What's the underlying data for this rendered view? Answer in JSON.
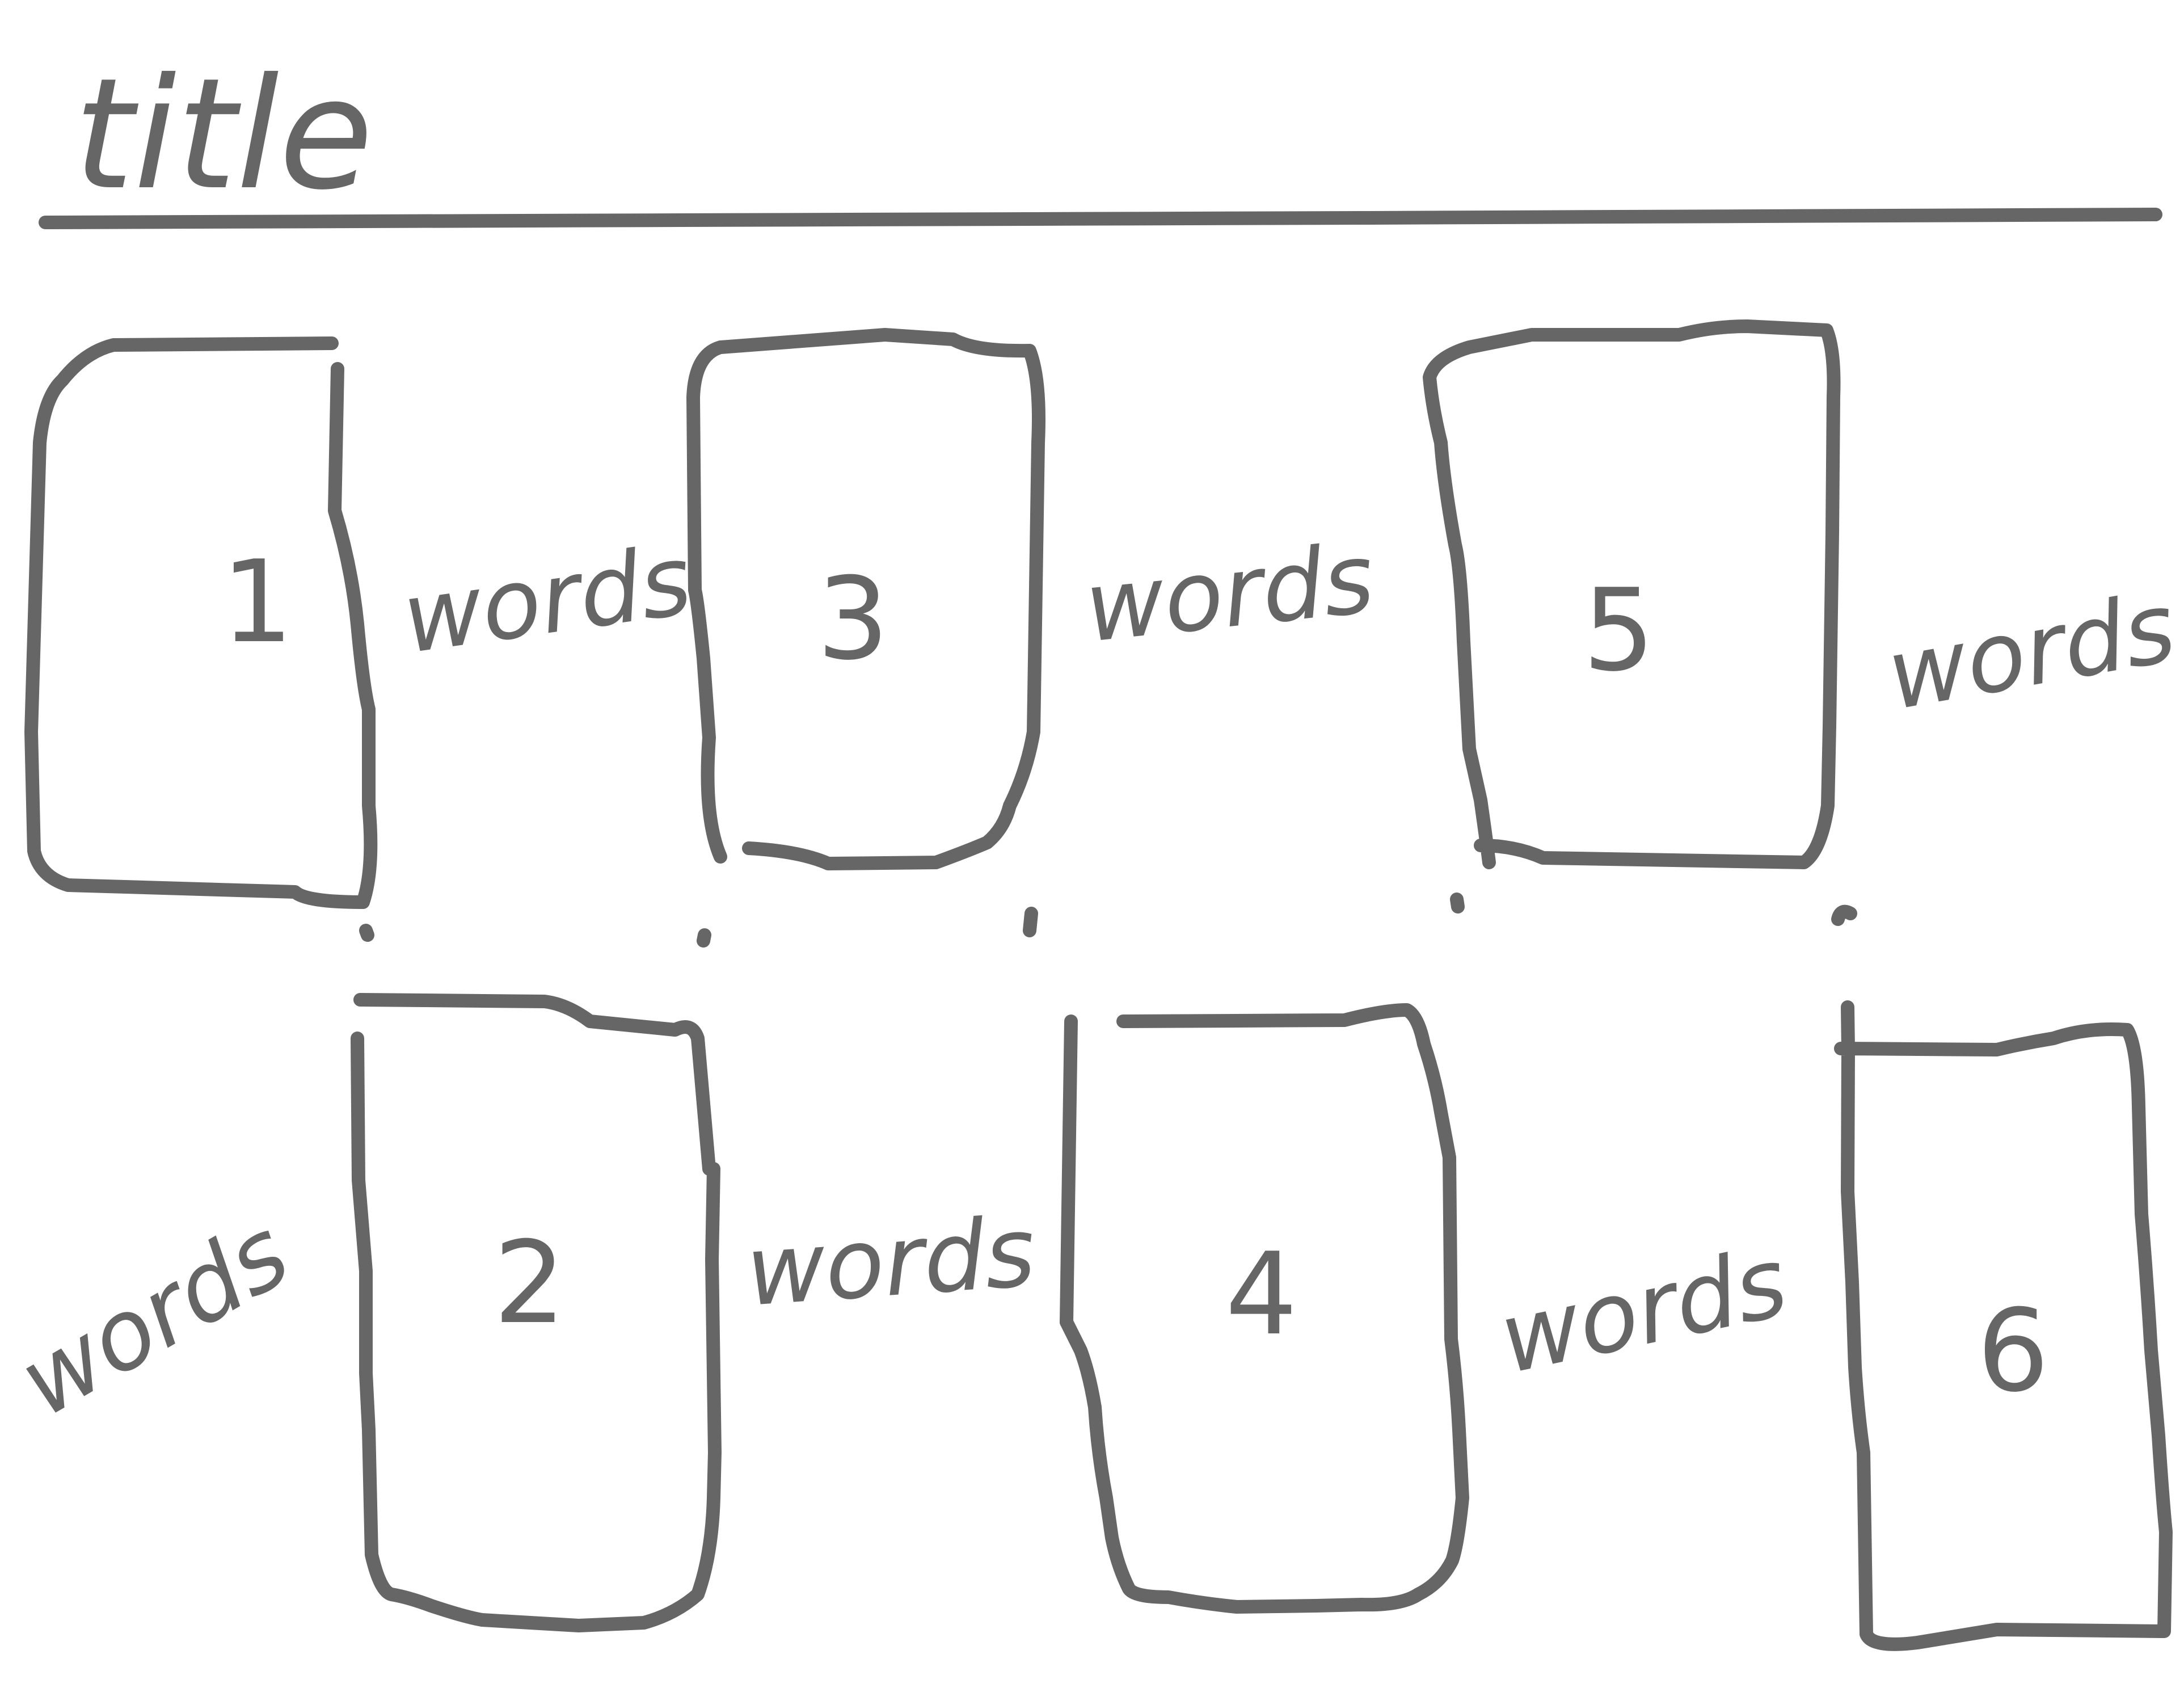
{
  "sketch": {
    "title": "title",
    "ink_color": "#666666",
    "background": "#ffffff"
  },
  "boxes": [
    {
      "label": "1"
    },
    {
      "label": "2"
    },
    {
      "label": "3"
    },
    {
      "label": "4"
    },
    {
      "label": "5"
    },
    {
      "label": "6"
    }
  ],
  "words_labels": [
    "words",
    "words",
    "words",
    "words",
    "words",
    "words"
  ]
}
